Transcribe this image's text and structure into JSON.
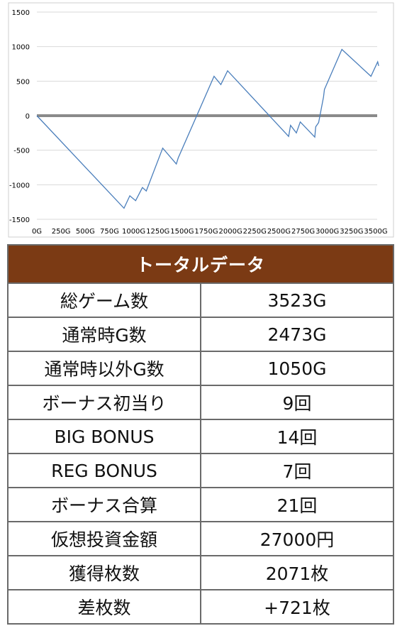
{
  "chart_data": {
    "type": "line",
    "title": "",
    "xlabel": "",
    "ylabel": "",
    "xlim": [
      0,
      3550
    ],
    "ylim": [
      -1500,
      1500
    ],
    "x_ticks": [
      "0G",
      "250G",
      "500G",
      "750G",
      "1000G",
      "1250G",
      "1500G",
      "1750G",
      "2000G",
      "2250G",
      "2500G",
      "2750G",
      "3000G",
      "3250G",
      "3500G"
    ],
    "y_ticks": [
      "1500",
      "1000",
      "500",
      "0",
      "-500",
      "-1000",
      "-1500"
    ],
    "grid": true,
    "series": [
      {
        "color": "#4a7ebb",
        "points": [
          [
            0,
            0
          ],
          [
            900,
            -1340
          ],
          [
            960,
            -1160
          ],
          [
            1020,
            -1230
          ],
          [
            1090,
            -1040
          ],
          [
            1130,
            -1090
          ],
          [
            1300,
            -470
          ],
          [
            1440,
            -700
          ],
          [
            1460,
            -610
          ],
          [
            1830,
            570
          ],
          [
            1900,
            450
          ],
          [
            1970,
            650
          ],
          [
            2600,
            -300
          ],
          [
            2620,
            -140
          ],
          [
            2680,
            -250
          ],
          [
            2720,
            -90
          ],
          [
            2870,
            -310
          ],
          [
            2880,
            -160
          ],
          [
            2910,
            -100
          ],
          [
            2960,
            270
          ],
          [
            2970,
            380
          ],
          [
            3150,
            960
          ],
          [
            3450,
            570
          ],
          [
            3520,
            780
          ],
          [
            3530,
            720
          ]
        ]
      }
    ],
    "zero_line": true
  },
  "table": {
    "header": "トータルデータ",
    "rows": [
      {
        "label": "総ゲーム数",
        "value": "3523G"
      },
      {
        "label": "通常時G数",
        "value": "2473G"
      },
      {
        "label": "通常時以外G数",
        "value": "1050G"
      },
      {
        "label": "ボーナス初当り",
        "value": "9回"
      },
      {
        "label": "BIG BONUS",
        "value": "14回"
      },
      {
        "label": "REG BONUS",
        "value": "7回"
      },
      {
        "label": "ボーナス合算",
        "value": "21回"
      },
      {
        "label": "仮想投資金額",
        "value": "27000円"
      },
      {
        "label": "獲得枚数",
        "value": "2071枚"
      },
      {
        "label": "差枚数",
        "value": "+721枚"
      }
    ]
  }
}
